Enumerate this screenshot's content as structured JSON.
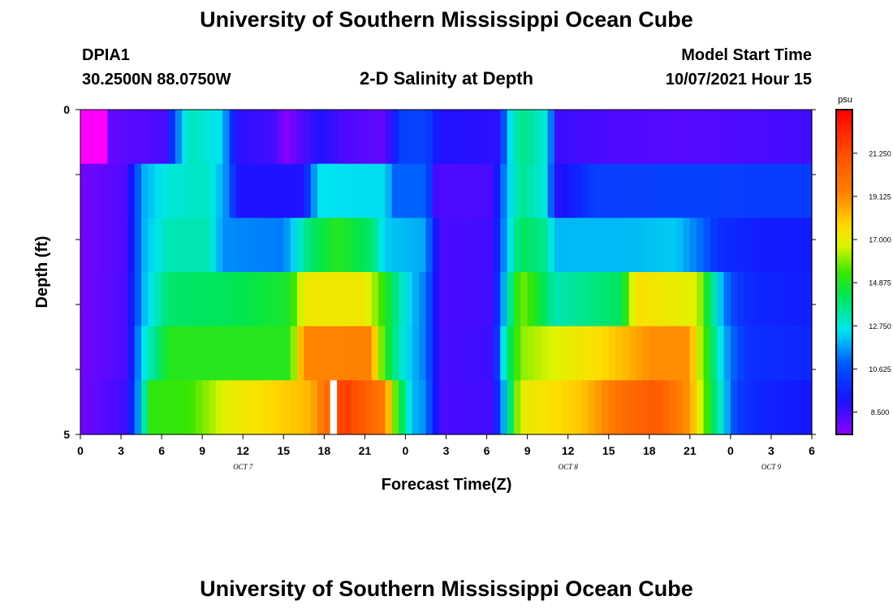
{
  "page": {
    "title_top": "University of Southern Mississippi Ocean Cube",
    "title_bottom": "University of Southern Mississippi Ocean Cube",
    "station_id": "DPIA1",
    "station_coords": "30.2500N  88.0750W",
    "chart_title": "2-D Salinity at Depth",
    "model_start_label": "Model Start Time",
    "model_start_value": "10/07/2021 Hour 15"
  },
  "chart_data": {
    "type": "heatmap",
    "title": "2-D Salinity at Depth",
    "xlabel": "Forecast Time(Z)",
    "ylabel": "Depth (ft)",
    "colorbar_label": "psu",
    "x_tick_labels": [
      "0",
      "3",
      "6",
      "9",
      "12",
      "15",
      "18",
      "21",
      "0",
      "3",
      "6",
      "9",
      "12",
      "15",
      "18",
      "21",
      "0",
      "3",
      "6"
    ],
    "x_range_hours": [
      0,
      54
    ],
    "date_labels": [
      {
        "label": "OCT 7",
        "hour": 12
      },
      {
        "label": "OCT 8",
        "hour": 36
      },
      {
        "label": "OCT 9",
        "hour": 51
      }
    ],
    "y_tick_labels": [
      "0",
      "5"
    ],
    "y_range_ft": [
      0,
      5
    ],
    "depth_levels_ft": [
      0,
      1,
      2,
      3,
      4,
      5
    ],
    "colorbar_ticks": [
      "21.250",
      "19.125",
      "17.000",
      "14.875",
      "12.750",
      "10.625",
      "8.500"
    ],
    "color_range_psu": [
      7.4,
      23.4
    ],
    "gap_hour": 18.5,
    "rows": [
      {
        "depth_ft": 0,
        "knots": [
          [
            0,
            22.8
          ],
          [
            1.8,
            22.5
          ],
          [
            2.2,
            8.0
          ],
          [
            6.3,
            8.4
          ],
          [
            7.3,
            11.6
          ],
          [
            8,
            13.2
          ],
          [
            10.5,
            12.4
          ],
          [
            11.5,
            8.8
          ],
          [
            14.2,
            8.5
          ],
          [
            15.2,
            7.5
          ],
          [
            16.5,
            8.4
          ],
          [
            17.8,
            9.0
          ],
          [
            19.5,
            8.3
          ],
          [
            22.5,
            8.0
          ],
          [
            23.6,
            10.2
          ],
          [
            25.5,
            10.4
          ],
          [
            26.5,
            9.0
          ],
          [
            31,
            8.8
          ],
          [
            31.4,
            11.8
          ],
          [
            32.5,
            13.8
          ],
          [
            34.5,
            12.7
          ],
          [
            35.2,
            8.6
          ],
          [
            40,
            8.3
          ],
          [
            45,
            8.2
          ],
          [
            54,
            8.5
          ]
        ]
      },
      {
        "depth_ft": 1,
        "knots": [
          [
            0,
            7.8
          ],
          [
            3.5,
            8.3
          ],
          [
            4.5,
            11.8
          ],
          [
            6.5,
            12.8
          ],
          [
            9.5,
            13.0
          ],
          [
            11,
            11.2
          ],
          [
            11.5,
            9.0
          ],
          [
            16.5,
            9.0
          ],
          [
            17.5,
            12.5
          ],
          [
            22.5,
            12.4
          ],
          [
            23.2,
            11.0
          ],
          [
            25.5,
            11.0
          ],
          [
            26.3,
            8.3
          ],
          [
            30.5,
            8.4
          ],
          [
            31.4,
            11.8
          ],
          [
            32.5,
            13.6
          ],
          [
            34.5,
            12.6
          ],
          [
            35.1,
            8.8
          ],
          [
            38,
            10.2
          ],
          [
            45,
            10.3
          ],
          [
            49,
            10.2
          ],
          [
            54,
            10.2
          ]
        ]
      },
      {
        "depth_ft": 2,
        "knots": [
          [
            0,
            7.8
          ],
          [
            3.5,
            8.3
          ],
          [
            4.5,
            11.8
          ],
          [
            6.5,
            13.2
          ],
          [
            9.5,
            13.2
          ],
          [
            10.5,
            11.5
          ],
          [
            15,
            11.3
          ],
          [
            17,
            14.0
          ],
          [
            19,
            15.0
          ],
          [
            21.5,
            14.0
          ],
          [
            22.5,
            12.2
          ],
          [
            25.5,
            11.8
          ],
          [
            26.5,
            8.4
          ],
          [
            30.5,
            8.5
          ],
          [
            31.4,
            12.0
          ],
          [
            32.5,
            14.2
          ],
          [
            34.5,
            13.5
          ],
          [
            35,
            12.0
          ],
          [
            40,
            12.0
          ],
          [
            44,
            12.2
          ],
          [
            46,
            11.0
          ],
          [
            47,
            9.8
          ],
          [
            50,
            9.4
          ],
          [
            54,
            9.3
          ]
        ]
      },
      {
        "depth_ft": 3,
        "knots": [
          [
            0,
            7.8
          ],
          [
            3.5,
            8.4
          ],
          [
            4.5,
            11.8
          ],
          [
            6.5,
            14.0
          ],
          [
            11,
            14.2
          ],
          [
            15.5,
            14.8
          ],
          [
            16.5,
            17.2
          ],
          [
            21,
            17.2
          ],
          [
            22.5,
            15.0
          ],
          [
            24,
            12.6
          ],
          [
            25.5,
            11.2
          ],
          [
            26.5,
            8.4
          ],
          [
            30.5,
            8.5
          ],
          [
            31.4,
            12.5
          ],
          [
            32.5,
            16.0
          ],
          [
            34,
            14.5
          ],
          [
            35,
            13.2
          ],
          [
            40,
            14.2
          ],
          [
            41,
            17.5
          ],
          [
            45.5,
            16.8
          ],
          [
            46.5,
            14.0
          ],
          [
            47.5,
            11.5
          ],
          [
            48.5,
            10.0
          ],
          [
            50,
            9.6
          ],
          [
            54,
            9.4
          ]
        ]
      },
      {
        "depth_ft": 4,
        "knots": [
          [
            0,
            7.8
          ],
          [
            3.5,
            8.4
          ],
          [
            4.5,
            12.3
          ],
          [
            6.5,
            15.0
          ],
          [
            15.5,
            15.0
          ],
          [
            16.5,
            19.2
          ],
          [
            21.5,
            19.3
          ],
          [
            22,
            16.5
          ],
          [
            23,
            14.0
          ],
          [
            24,
            12.5
          ],
          [
            25.5,
            11.2
          ],
          [
            26.5,
            8.4
          ],
          [
            30.5,
            8.6
          ],
          [
            31.4,
            13.5
          ],
          [
            32.5,
            16.0
          ],
          [
            34.5,
            16.6
          ],
          [
            39,
            17.8
          ],
          [
            42,
            19.0
          ],
          [
            45,
            19.0
          ],
          [
            45.5,
            17.0
          ],
          [
            46.5,
            14.5
          ],
          [
            47.5,
            12.0
          ],
          [
            49,
            10.0
          ],
          [
            50,
            9.8
          ],
          [
            54,
            9.6
          ]
        ]
      },
      {
        "depth_ft": 5,
        "knots": [
          [
            0,
            7.8
          ],
          [
            3.5,
            8.6
          ],
          [
            4.5,
            12.5
          ],
          [
            5.2,
            15.2
          ],
          [
            8,
            15.3
          ],
          [
            11,
            17.0
          ],
          [
            17,
            18.3
          ],
          [
            18.5,
            20.5
          ],
          [
            19.5,
            21.8
          ],
          [
            22.5,
            19.5
          ],
          [
            23.3,
            15.5
          ],
          [
            24.5,
            12.0
          ],
          [
            25.5,
            11.5
          ],
          [
            26.5,
            8.4
          ],
          [
            30.5,
            8.5
          ],
          [
            31.4,
            12.5
          ],
          [
            32.5,
            17.0
          ],
          [
            37,
            18.0
          ],
          [
            40,
            20.0
          ],
          [
            42.5,
            20.8
          ],
          [
            45,
            18.8
          ],
          [
            46,
            16.0
          ],
          [
            47,
            13.5
          ],
          [
            48.5,
            10.2
          ],
          [
            50,
            9.6
          ],
          [
            54,
            9.2
          ]
        ]
      }
    ]
  }
}
